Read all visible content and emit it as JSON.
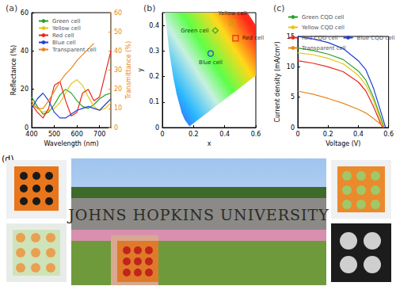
{
  "chart_data": [
    {
      "type": "line",
      "title": "(a)",
      "x_label": "Wavelength (nm)",
      "y_label": "Reflectance (%)",
      "y2_label": "Transmittance (%)",
      "x": [
        400,
        425,
        450,
        475,
        500,
        525,
        550,
        575,
        600,
        625,
        650,
        675,
        700,
        725,
        750
      ],
      "xlim": [
        400,
        750
      ],
      "xticks": [
        400,
        500,
        600,
        700
      ],
      "ylim": [
        0,
        60
      ],
      "yticks": [
        0,
        20,
        40,
        60
      ],
      "y2lim": [
        0,
        60
      ],
      "y2ticks": [
        0,
        10,
        20,
        30,
        40,
        50,
        60
      ],
      "grid": false,
      "legend": "upper left",
      "series": [
        {
          "name": "Green cell",
          "color": "#2ca02c",
          "values": [
            16,
            11,
            7,
            8,
            12,
            17,
            20,
            18,
            14,
            11,
            10,
            12,
            15,
            17,
            18
          ]
        },
        {
          "name": "Yellow cell",
          "color": "#e6c619",
          "values": [
            14,
            10,
            8,
            9,
            10,
            13,
            18,
            23,
            25,
            22,
            16,
            11,
            9,
            10,
            13
          ]
        },
        {
          "name": "Red cell",
          "color": "#e8261c",
          "values": [
            12,
            8,
            5,
            10,
            22,
            24,
            14,
            6,
            8,
            18,
            20,
            14,
            16,
            28,
            40
          ]
        },
        {
          "name": "Blue cell",
          "color": "#1f3fd6",
          "values": [
            10,
            15,
            18,
            14,
            8,
            5,
            5,
            7,
            9,
            10,
            11,
            10,
            9,
            12,
            15
          ]
        },
        {
          "name": "Transparent cell",
          "color": "#e8871e",
          "axis": "y2",
          "values": [
            12,
            10,
            10,
            14,
            19,
            24,
            28,
            31,
            35,
            38,
            41,
            44,
            null,
            null,
            null
          ]
        }
      ]
    },
    {
      "type": "scatter",
      "title": "(b)",
      "x_label": "x",
      "y_label": "y",
      "xlim": [
        0,
        0.6
      ],
      "xticks": [
        0,
        0.2,
        0.4,
        0.6
      ],
      "ylim": [
        0,
        0.45
      ],
      "yticks": [
        0,
        0.1,
        0.2,
        0.3,
        0.4
      ],
      "grid": false,
      "gamut": {
        "x": [
          0.1741,
          0.144,
          0.124,
          0.091,
          0.069,
          0.045,
          0.023,
          0.016,
          0.547,
          0.575,
          0.6,
          0.6,
          0.1741
        ],
        "y": [
          0.005,
          0.03,
          0.058,
          0.133,
          0.2,
          0.295,
          0.413,
          0.45,
          0.45,
          0.424,
          0.4,
          0.203,
          0.005
        ]
      },
      "series": [
        {
          "name": "Green cell",
          "color": "#2ca02c",
          "marker": "diamond",
          "x": [
            0.34
          ],
          "values": [
            0.38
          ]
        },
        {
          "name": "Yellow cell",
          "color": "#c9a800",
          "marker": "square",
          "x": [
            0.45
          ],
          "values": [
            0.41
          ]
        },
        {
          "name": "Red cell",
          "color": "#e8261c",
          "marker": "square",
          "x": [
            0.47
          ],
          "values": [
            0.35
          ]
        },
        {
          "name": "Blue cell",
          "color": "#1f3fd6",
          "marker": "circle",
          "x": [
            0.31
          ],
          "values": [
            0.29
          ]
        }
      ]
    },
    {
      "type": "line",
      "title": "(c)",
      "x_label": "Voltage (V)",
      "y_label": "Current density (mA/cm²)",
      "xlim": [
        0,
        0.6
      ],
      "xticks": [
        0,
        0.2,
        0.4,
        0.6
      ],
      "ylim": [
        0,
        15
      ],
      "yticks": [
        0,
        5,
        10,
        15
      ],
      "grid": false,
      "legend": "top",
      "series": [
        {
          "name": "Green CQD cell",
          "color": "#2ca02c",
          "x": [
            0,
            0.1,
            0.2,
            0.3,
            0.4,
            0.45,
            0.5,
            0.55,
            0.57
          ],
          "values": [
            13.1,
            12.7,
            12.1,
            11.2,
            9.3,
            7.8,
            5,
            1.5,
            0
          ]
        },
        {
          "name": "Yellow CQD cell",
          "color": "#e6c619",
          "x": [
            0,
            0.1,
            0.2,
            0.3,
            0.4,
            0.45,
            0.5,
            0.55,
            0.565
          ],
          "values": [
            12.3,
            12,
            11.4,
            10.5,
            8.6,
            7,
            4.5,
            1,
            0
          ]
        },
        {
          "name": "Red CQD cell",
          "color": "#e8261c",
          "x": [
            0,
            0.1,
            0.2,
            0.3,
            0.4,
            0.45,
            0.5,
            0.55,
            0.56
          ],
          "values": [
            11,
            10.6,
            10,
            9.2,
            7.5,
            6,
            3.5,
            0.5,
            0
          ]
        },
        {
          "name": "Blue CQD cell",
          "color": "#1f3fd6",
          "x": [
            0,
            0.1,
            0.2,
            0.3,
            0.4,
            0.45,
            0.5,
            0.55,
            0.58
          ],
          "values": [
            15,
            14.6,
            14,
            13,
            11,
            9.5,
            6.5,
            2.5,
            0
          ]
        },
        {
          "name": "Transparent cell",
          "color": "#e8871e",
          "x": [
            0,
            0.1,
            0.2,
            0.3,
            0.4,
            0.45,
            0.5,
            0.55,
            0.57
          ],
          "values": [
            6,
            5.5,
            4.8,
            4,
            3,
            2.4,
            1.5,
            0.5,
            0
          ]
        }
      ]
    }
  ],
  "photo_panel": {
    "label": "(d)",
    "sign_text": "JOHNS HOPKINS UNIVERSITY"
  }
}
